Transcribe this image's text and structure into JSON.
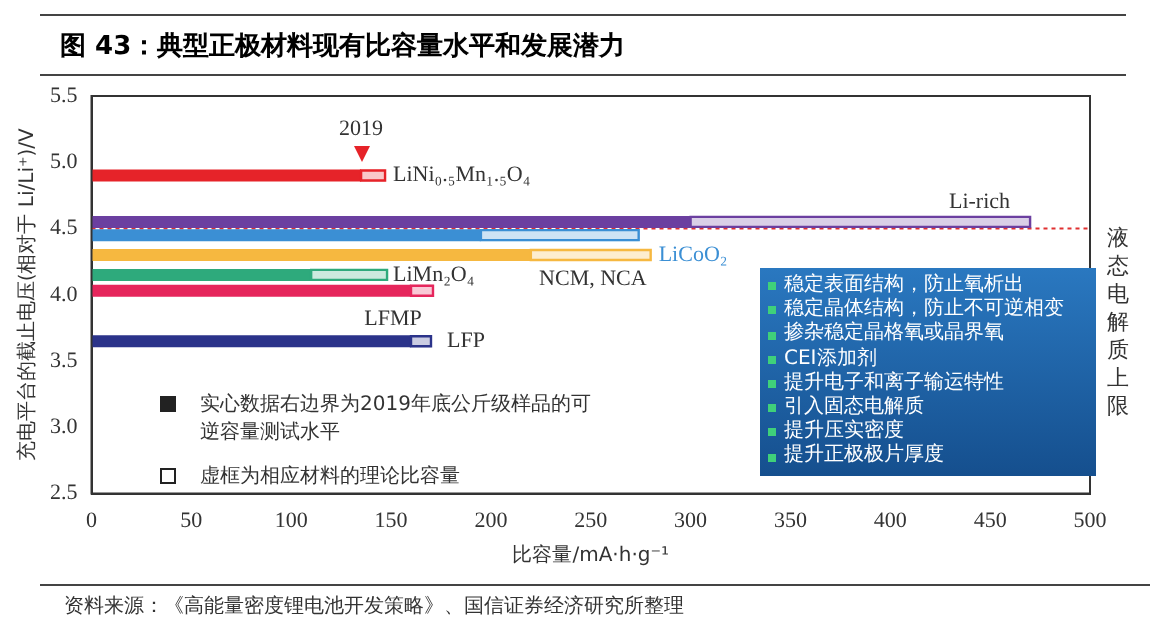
{
  "chart_data": {
    "type": "line",
    "title": "图 43：典型正极材料现有比容量水平和发展潜力",
    "xlabel": "比容量/mA·h·g⁻¹",
    "ylabel": "充电平台的截止电压(相对于 Li/Li⁺)/V",
    "xlim": [
      0,
      500
    ],
    "xticks": [
      0,
      50,
      100,
      150,
      200,
      250,
      300,
      350,
      400,
      450,
      500
    ],
    "ylim": [
      2.5,
      5.5
    ],
    "yticks": [
      2.5,
      {
        "value": 3,
        "label": "3.0"
      },
      3.5,
      {
        "value": 4,
        "label": "4.0"
      },
      4.5,
      {
        "value": 5,
        "label": "5.0"
      },
      5.5
    ],
    "grid": false,
    "marker": "none",
    "series": [
      {
        "name": "LiNi₀.₅Mn₁.₅O₄",
        "color": "#e62329",
        "x": [
          0,
          135,
          147
        ],
        "values": [
          4.9,
          4.9,
          4.9
        ]
      },
      {
        "name": "Li-rich",
        "color": "#6b3fa0",
        "x": [
          0,
          300,
          470
        ],
        "values": [
          4.55,
          4.55,
          4.55
        ]
      },
      {
        "name": "LiCoO₂",
        "color": "#3b8fd4",
        "x": [
          0,
          195,
          274
        ],
        "values": [
          4.45,
          4.45,
          4.45
        ]
      },
      {
        "name": "NCM, NCA",
        "color": "#f6b840",
        "x": [
          0,
          220,
          280
        ],
        "values": [
          4.3,
          4.3,
          4.3
        ]
      },
      {
        "name": "LiMn₂O₄",
        "color": "#2eaa7c",
        "x": [
          0,
          110,
          148
        ],
        "values": [
          4.15,
          4.15,
          4.15
        ]
      },
      {
        "name": "LFMP",
        "color": "#e6265c",
        "x": [
          0,
          160,
          171
        ],
        "values": [
          4.03,
          4.03,
          4.03
        ]
      },
      {
        "name": "LFP",
        "color": "#2b338a",
        "x": [
          0,
          160,
          170
        ],
        "values": [
          3.65,
          3.65,
          3.65
        ]
      }
    ],
    "ref_lines": [
      {
        "axis": "y",
        "value": 4.5,
        "label": "液态电解质上限",
        "color": "#e03030",
        "line_style": "dotted"
      }
    ],
    "annotations": [
      {
        "text": "2019",
        "x": 135,
        "y": 4.9
      },
      "实心数据右边界为2019年底公斤级样品的可逆容量测试水平",
      "虚框为相应材料的理论比容量",
      "稳定表面结构，防止氧析出",
      "稳定晶体结构，防止不可逆相变",
      "掺杂稳定晶格氧或晶界氧",
      "CEI添加剂",
      "提升电子和离子输运特性",
      "引入固态电解质",
      "提升压实密度",
      "提升正极极片厚度",
      "资料来源：《高能量密度锂电池开发策略》、国信证券经济研究所整理"
    ]
  }
}
